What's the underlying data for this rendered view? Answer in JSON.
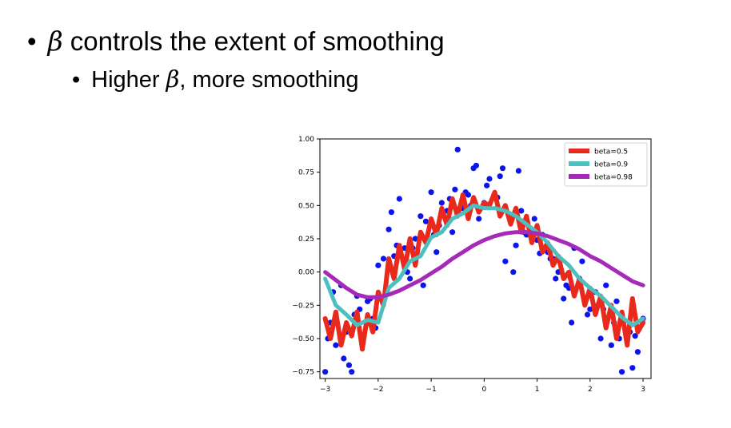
{
  "slide": {
    "bullet1": {
      "marker": "•",
      "symbol": "β",
      "text": " controls the extent of smoothing"
    },
    "bullet2": {
      "marker": "•",
      "prefix": "Higher ",
      "symbol": "β",
      "suffix": ", more smoothing"
    }
  },
  "colors": {
    "raw_points": "#0a14ee",
    "beta_0_5": "#e8291c",
    "beta_0_9": "#4dbfbf",
    "beta_0_98": "#a52ab8"
  },
  "chart_data": {
    "type": "scatter",
    "xlim": [
      -3.1,
      3.15
    ],
    "ylim": [
      -0.8,
      1.0
    ],
    "xticks": [
      -3,
      -2,
      -1,
      0,
      1,
      2,
      3
    ],
    "yticks": [
      -0.75,
      -0.5,
      -0.25,
      0.0,
      0.25,
      0.5,
      0.75,
      1.0
    ],
    "xtick_labels": [
      "−3",
      "−2",
      "−1",
      "0",
      "1",
      "2",
      "3"
    ],
    "ytick_labels": [
      "−0.75",
      "−0.50",
      "−0.25",
      "0.00",
      "0.25",
      "0.50",
      "0.75",
      "1.00"
    ],
    "legend_position": "top-right",
    "legend": [
      "beta=0.5",
      "beta=0.9",
      "beta=0.98"
    ],
    "scatter": {
      "x": [
        -3.0,
        -2.9,
        -2.8,
        -2.7,
        -2.6,
        -2.5,
        -2.4,
        -2.3,
        -2.2,
        -2.1,
        -2.0,
        -1.9,
        -1.8,
        -1.7,
        -1.6,
        -1.5,
        -1.4,
        -1.3,
        -1.2,
        -1.1,
        -1.0,
        -0.9,
        -0.8,
        -0.7,
        -0.6,
        -0.5,
        -0.4,
        -0.3,
        -0.2,
        -0.1,
        0.0,
        0.1,
        0.2,
        0.3,
        0.4,
        0.5,
        0.6,
        0.7,
        0.8,
        0.9,
        1.0,
        1.1,
        1.2,
        1.3,
        1.4,
        1.5,
        1.6,
        1.7,
        1.8,
        1.9,
        2.0,
        2.1,
        2.2,
        2.3,
        2.4,
        2.5,
        2.6,
        2.7,
        2.8,
        2.9,
        3.0,
        -2.95,
        -2.65,
        -2.35,
        -2.05,
        -1.75,
        -1.45,
        -1.15,
        -0.85,
        -0.55,
        -0.25,
        0.05,
        0.35,
        0.65,
        0.95,
        1.25,
        1.55,
        1.85,
        2.15,
        2.45,
        2.75,
        -2.85,
        -2.55,
        -2.45,
        -2.15,
        -1.65,
        -1.35,
        -0.95,
        -0.65,
        -0.35,
        -0.15,
        0.25,
        0.55,
        0.75,
        1.05,
        1.35,
        1.65,
        1.95,
        2.25,
        2.55,
        2.85
      ],
      "y": [
        -0.75,
        -0.38,
        -0.55,
        -0.1,
        -0.45,
        -0.75,
        -0.18,
        -0.5,
        -0.22,
        -0.35,
        0.05,
        0.1,
        0.32,
        0.12,
        0.55,
        0.18,
        -0.05,
        0.25,
        0.42,
        0.38,
        0.6,
        0.15,
        0.52,
        0.46,
        0.3,
        0.92,
        0.48,
        0.58,
        0.78,
        0.4,
        0.52,
        0.7,
        0.58,
        0.72,
        0.08,
        0.38,
        0.2,
        0.46,
        0.28,
        0.24,
        0.24,
        0.28,
        0.15,
        0.1,
        0.0,
        -0.2,
        -0.12,
        0.18,
        -0.05,
        -0.22,
        -0.28,
        -0.15,
        -0.5,
        -0.1,
        -0.55,
        -0.22,
        -0.75,
        -0.5,
        -0.72,
        -0.6,
        -0.35,
        -0.5,
        -0.65,
        -0.28,
        -0.42,
        0.45,
        0.0,
        -0.1,
        0.35,
        0.62,
        0.5,
        0.65,
        0.78,
        0.76,
        0.4,
        0.1,
        -0.1,
        0.08,
        -0.25,
        -0.38,
        -0.45,
        -0.15,
        -0.7,
        -0.32,
        -0.2,
        0.2,
        0.18,
        0.28,
        0.55,
        0.6,
        0.8,
        0.56,
        0.0,
        0.3,
        0.14,
        -0.05,
        -0.38,
        -0.32,
        -0.28,
        -0.5,
        -0.48
      ]
    },
    "series": [
      {
        "name": "beta=0.5",
        "color": "#e8291c",
        "x": [
          -3.0,
          -2.9,
          -2.8,
          -2.7,
          -2.6,
          -2.5,
          -2.4,
          -2.3,
          -2.2,
          -2.1,
          -2.0,
          -1.9,
          -1.8,
          -1.7,
          -1.6,
          -1.5,
          -1.4,
          -1.3,
          -1.2,
          -1.1,
          -1.0,
          -0.9,
          -0.8,
          -0.7,
          -0.6,
          -0.5,
          -0.4,
          -0.3,
          -0.2,
          -0.1,
          0.0,
          0.1,
          0.2,
          0.3,
          0.4,
          0.5,
          0.6,
          0.7,
          0.8,
          0.9,
          1.0,
          1.1,
          1.2,
          1.3,
          1.4,
          1.5,
          1.6,
          1.7,
          1.8,
          1.9,
          2.0,
          2.1,
          2.2,
          2.3,
          2.4,
          2.5,
          2.6,
          2.7,
          2.8,
          2.9,
          3.0
        ],
        "y": [
          -0.35,
          -0.5,
          -0.3,
          -0.55,
          -0.38,
          -0.48,
          -0.3,
          -0.58,
          -0.32,
          -0.45,
          -0.15,
          -0.25,
          0.1,
          -0.05,
          0.2,
          0.02,
          0.25,
          0.05,
          0.3,
          0.22,
          0.4,
          0.28,
          0.48,
          0.35,
          0.55,
          0.42,
          0.58,
          0.4,
          0.56,
          0.45,
          0.52,
          0.5,
          0.6,
          0.42,
          0.5,
          0.36,
          0.48,
          0.3,
          0.42,
          0.22,
          0.35,
          0.15,
          0.22,
          0.05,
          0.12,
          -0.05,
          0.0,
          -0.18,
          -0.05,
          -0.25,
          -0.12,
          -0.32,
          -0.18,
          -0.42,
          -0.25,
          -0.5,
          -0.3,
          -0.55,
          -0.2,
          -0.45,
          -0.38
        ]
      },
      {
        "name": "beta=0.9",
        "color": "#4dbfbf",
        "x": [
          -3.0,
          -2.8,
          -2.6,
          -2.4,
          -2.2,
          -2.0,
          -1.8,
          -1.6,
          -1.4,
          -1.2,
          -1.0,
          -0.8,
          -0.6,
          -0.4,
          -0.2,
          0.0,
          0.2,
          0.4,
          0.6,
          0.8,
          1.0,
          1.2,
          1.4,
          1.6,
          1.8,
          2.0,
          2.2,
          2.4,
          2.6,
          2.8,
          3.0
        ],
        "y": [
          -0.05,
          -0.25,
          -0.32,
          -0.4,
          -0.36,
          -0.38,
          -0.12,
          -0.05,
          0.08,
          0.12,
          0.26,
          0.3,
          0.4,
          0.44,
          0.5,
          0.48,
          0.48,
          0.46,
          0.42,
          0.36,
          0.3,
          0.22,
          0.12,
          0.05,
          -0.05,
          -0.12,
          -0.18,
          -0.26,
          -0.34,
          -0.4,
          -0.35
        ]
      },
      {
        "name": "beta=0.98",
        "color": "#a52ab8",
        "x": [
          -3.0,
          -2.8,
          -2.6,
          -2.4,
          -2.2,
          -2.0,
          -1.8,
          -1.6,
          -1.4,
          -1.2,
          -1.0,
          -0.8,
          -0.6,
          -0.4,
          -0.2,
          0.0,
          0.2,
          0.4,
          0.6,
          0.8,
          1.0,
          1.2,
          1.4,
          1.6,
          1.8,
          2.0,
          2.2,
          2.4,
          2.6,
          2.8,
          3.0
        ],
        "y": [
          0.0,
          -0.06,
          -0.12,
          -0.17,
          -0.19,
          -0.19,
          -0.17,
          -0.14,
          -0.1,
          -0.06,
          -0.01,
          0.04,
          0.1,
          0.15,
          0.2,
          0.24,
          0.27,
          0.29,
          0.3,
          0.3,
          0.29,
          0.27,
          0.24,
          0.21,
          0.17,
          0.12,
          0.08,
          0.03,
          -0.02,
          -0.07,
          -0.1
        ]
      }
    ]
  }
}
